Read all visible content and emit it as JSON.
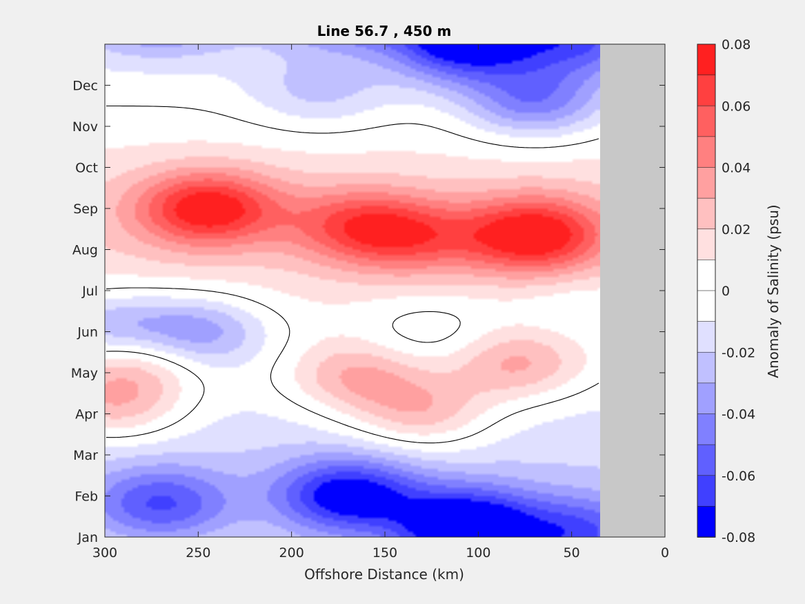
{
  "chart_data": {
    "type": "contour",
    "title": "Line 56.7 , 450 m",
    "xlabel": "Offshore Distance (km)",
    "ylabel": "",
    "xlim": [
      300,
      0
    ],
    "x_reversed": true,
    "x_ticks": [
      "300",
      "250",
      "200",
      "150",
      "100",
      "50",
      "0"
    ],
    "y_ticks": [
      "Jan",
      "Feb",
      "Mar",
      "Apr",
      "May",
      "Jun",
      "Jul",
      "Aug",
      "Sep",
      "Oct",
      "Nov",
      "Dec"
    ],
    "no_data_region": {
      "x_from": 35,
      "x_to": 0,
      "color": "#c8c8c8"
    },
    "colorbar": {
      "label": "Anomaly of Salinity (psu)",
      "tick_labels": [
        "0.08",
        "0.06",
        "0.04",
        "0.02",
        "0",
        "-0.02",
        "-0.04",
        "-0.06",
        "-0.08"
      ],
      "tick_values": [
        0.08,
        0.06,
        0.04,
        0.02,
        0,
        -0.02,
        -0.04,
        -0.06,
        -0.08
      ],
      "min": -0.08,
      "max": 0.08,
      "levels": 16,
      "colors": [
        "#0000ff",
        "#2020ff",
        "#4040ff",
        "#6060ff",
        "#8080ff",
        "#a0a0ff",
        "#c0c0ff",
        "#e0e0ff",
        "#ffffff",
        "#ffe0e0",
        "#ffc0c0",
        "#ffa0a0",
        "#ff8080",
        "#ff6060",
        "#ff4040",
        "#ff2020",
        "#ff0000"
      ]
    },
    "zero_contour": true,
    "features": [
      {
        "kind": "max",
        "x_km": 245,
        "month": 8.0,
        "value": 0.065
      },
      {
        "kind": "max",
        "x_km": 135,
        "month": 7.3,
        "value": 0.035
      },
      {
        "kind": "max",
        "x_km": 70,
        "month": 7.2,
        "value": 0.035
      },
      {
        "kind": "max",
        "x_km": 165,
        "month": 7.6,
        "value": 0.04
      },
      {
        "kind": "max",
        "x_km": 295,
        "month": 3.2,
        "value": 0.035
      },
      {
        "kind": "max",
        "x_km": 285,
        "month": 4.3,
        "value": 0.03
      },
      {
        "kind": "max",
        "x_km": 165,
        "month": 3.9,
        "value": 0.035
      },
      {
        "kind": "max",
        "x_km": 130,
        "month": 3.0,
        "value": 0.035
      },
      {
        "kind": "max",
        "x_km": 80,
        "month": 4.2,
        "value": 0.035
      },
      {
        "kind": "max",
        "x_km": 70,
        "month": 7.5,
        "value": 0.035
      },
      {
        "kind": "min",
        "x_km": 170,
        "month": 1.0,
        "value": -0.065
      },
      {
        "kind": "min",
        "x_km": 105,
        "month": 0.4,
        "value": -0.055
      },
      {
        "kind": "min",
        "x_km": 250,
        "month": 5.0,
        "value": -0.04
      },
      {
        "kind": "min",
        "x_km": 70,
        "month": 10.6,
        "value": -0.045
      },
      {
        "kind": "min",
        "x_km": 110,
        "month": 11.8,
        "value": -0.035
      },
      {
        "kind": "min",
        "x_km": 270,
        "month": 0.8,
        "value": -0.045
      },
      {
        "kind": "min",
        "x_km": 298,
        "month": 5.1,
        "value": -0.035
      },
      {
        "kind": "min",
        "x_km": 45,
        "month": 0.1,
        "value": -0.045
      },
      {
        "kind": "min",
        "x_km": 125,
        "month": 5.0,
        "value": -0.015
      },
      {
        "kind": "min",
        "x_km": 185,
        "month": 10.8,
        "value": -0.02
      },
      {
        "kind": "min",
        "x_km": 48,
        "month": 5.6,
        "value": -0.01
      }
    ]
  }
}
